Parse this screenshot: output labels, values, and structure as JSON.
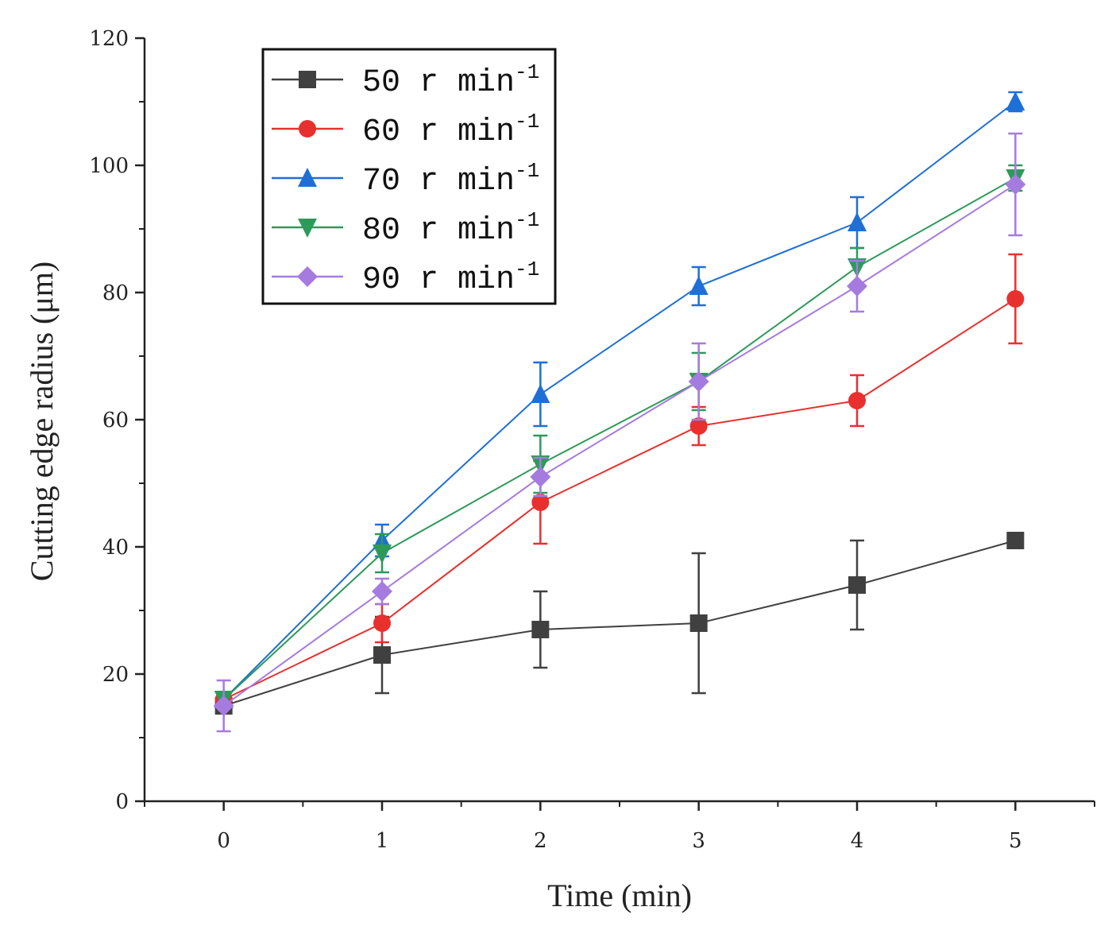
{
  "chart_data": {
    "type": "line",
    "xlabel": "Time (min)",
    "ylabel": "Cutting edge radius (μm)",
    "xlim": [
      -0.5,
      5.5
    ],
    "ylim": [
      0,
      120
    ],
    "x_ticks": [
      0,
      1,
      2,
      3,
      4,
      5
    ],
    "y_ticks": [
      0,
      20,
      40,
      60,
      80,
      100,
      120
    ],
    "grid": false,
    "legend_position": "top-left",
    "x": [
      0,
      1,
      2,
      3,
      4,
      5
    ],
    "series": [
      {
        "name": "50 r min",
        "name_superscript": "-1",
        "color": "#404040",
        "marker": "square",
        "values": [
          15,
          23,
          27,
          28,
          34,
          41
        ],
        "errors": [
          1,
          6,
          6,
          11,
          7,
          0.8
        ]
      },
      {
        "name": "60 r min",
        "name_superscript": "-1",
        "color": "#e8302e",
        "marker": "circle",
        "values": [
          16,
          28,
          47,
          59,
          63,
          79
        ],
        "errors": [
          1,
          3,
          6.5,
          3,
          4,
          7
        ]
      },
      {
        "name": "70 r min",
        "name_superscript": "-1",
        "color": "#1f6fd8",
        "marker": "triangle-up",
        "values": [
          16,
          41,
          64,
          81,
          91,
          110
        ],
        "errors": [
          1,
          2.5,
          5,
          3,
          4,
          1.5
        ]
      },
      {
        "name": "80 r min",
        "name_superscript": "-1",
        "color": "#2e9a5a",
        "marker": "triangle-down",
        "values": [
          16,
          39,
          53,
          66,
          84,
          98
        ],
        "errors": [
          1,
          3,
          4.5,
          4.5,
          3,
          2
        ]
      },
      {
        "name": "90 r min",
        "name_superscript": "-1",
        "color": "#a57be0",
        "marker": "diamond",
        "values": [
          15,
          33,
          51,
          66,
          81,
          97
        ],
        "errors": [
          4,
          2,
          3,
          6,
          4,
          8
        ]
      }
    ]
  }
}
